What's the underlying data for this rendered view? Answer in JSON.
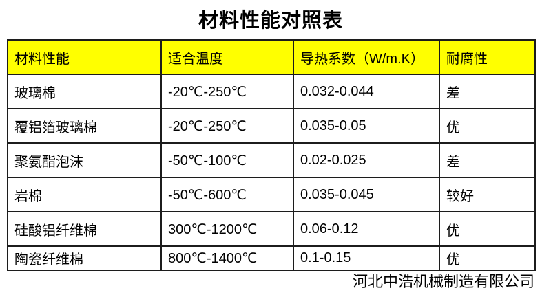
{
  "title": "材料性能对照表",
  "table": {
    "headers": [
      "材料性能",
      "适合温度",
      "导热系数（W/m.K）",
      "耐腐性"
    ],
    "rows": [
      [
        "玻璃棉",
        "-20℃-250℃",
        "0.032-0.044",
        "差"
      ],
      [
        "覆铝箔玻璃棉",
        "-20℃-250℃",
        "0.035-0.05",
        "优"
      ],
      [
        "聚氨酯泡沫",
        "-50℃-100℃",
        "0.02-0.025",
        "差"
      ],
      [
        "岩棉",
        "-50℃-600℃",
        "0.035-0.045",
        "较好"
      ],
      [
        "硅酸铝纤维棉",
        "300℃-1200℃",
        "0.06-0.12",
        "优"
      ],
      [
        "陶瓷纤维棉",
        "800℃-1400℃",
        "0.1-0.15",
        "优"
      ]
    ]
  },
  "footer": "河北中浩机械制造有限公司",
  "colors": {
    "header_bg": "#ffff00",
    "border": "#1c1c1c",
    "text": "#000000",
    "background": "#ffffff"
  }
}
